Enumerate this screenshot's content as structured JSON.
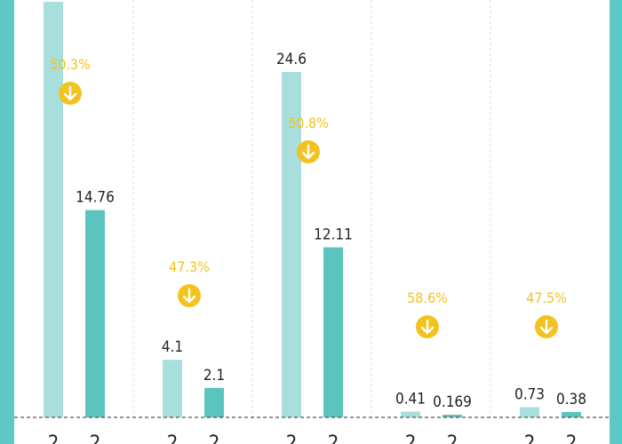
{
  "colors": {
    "frame": "#5ec8c6",
    "bar_light": "#a8dfdc",
    "bar_dark": "#5cc4bf",
    "accent": "#f3c21f",
    "text": "#222222",
    "divider": "#dddddd",
    "baseline": "#555555"
  },
  "icons": {
    "decrease": "arrow-down-circle-icon"
  },
  "chart_data": {
    "type": "bar",
    "groups": [
      {
        "bars": [
          {
            "value": null,
            "label": "",
            "tick": "2",
            "shade": "light"
          },
          {
            "value": 14.76,
            "label": "14.76",
            "tick": "2",
            "shade": "dark"
          }
        ],
        "change": "50.3%"
      },
      {
        "bars": [
          {
            "value": 4.1,
            "label": "4.1",
            "tick": "2",
            "shade": "light"
          },
          {
            "value": 2.1,
            "label": "2.1",
            "tick": "2",
            "shade": "dark"
          }
        ],
        "change": "47.3%"
      },
      {
        "bars": [
          {
            "value": 24.6,
            "label": "24.6",
            "tick": "2",
            "shade": "light"
          },
          {
            "value": 12.11,
            "label": "12.11",
            "tick": "2",
            "shade": "dark"
          }
        ],
        "change": "50.8%"
      },
      {
        "bars": [
          {
            "value": 0.41,
            "label": "0.41",
            "tick": "2",
            "shade": "light"
          },
          {
            "value": 0.169,
            "label": "0.169",
            "tick": "2",
            "shade": "dark"
          }
        ],
        "change": "58.6%"
      },
      {
        "bars": [
          {
            "value": 0.73,
            "label": "0.73",
            "tick": "2",
            "shade": "light"
          },
          {
            "value": 0.38,
            "label": "0.38",
            "tick": "2",
            "shade": "dark"
          }
        ],
        "change": "47.5%"
      }
    ],
    "ylim": [
      0,
      24.6
    ],
    "grid": false,
    "legend": "none"
  }
}
